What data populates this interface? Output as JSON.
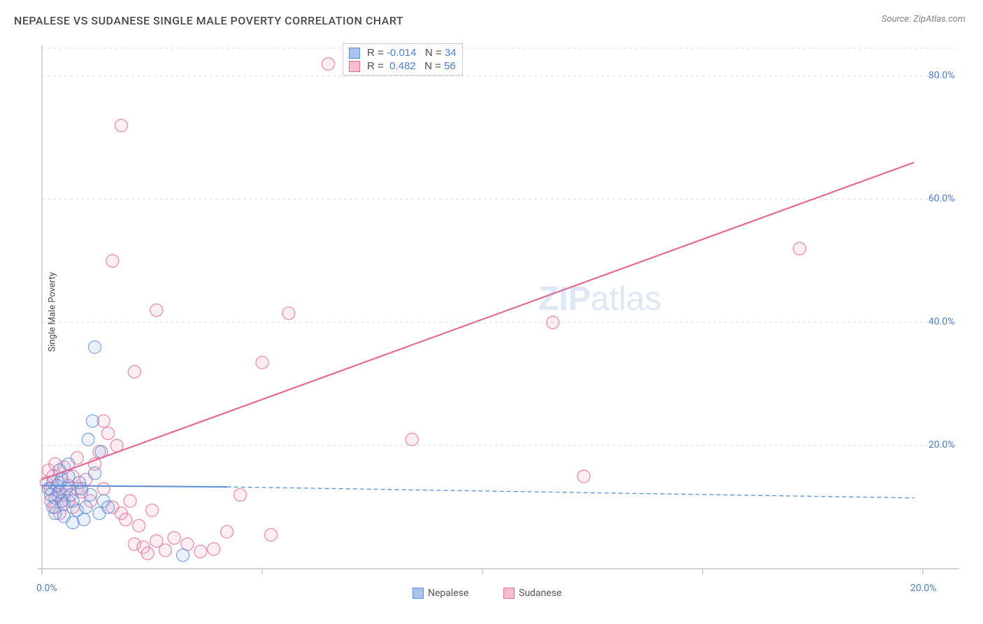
{
  "title": "NEPALESE VS SUDANESE SINGLE MALE POVERTY CORRELATION CHART",
  "source_label": "Source: ZipAtlas.com",
  "ylabel": "Single Male Poverty",
  "watermark_bold": "ZIP",
  "watermark_light": "atlas",
  "chart": {
    "type": "scatter",
    "xlim": [
      0,
      20
    ],
    "ylim": [
      0,
      85
    ],
    "x_ticks": [
      0,
      5,
      10,
      15,
      20
    ],
    "y_ticks": [
      20,
      40,
      60,
      80
    ],
    "x_tick_labels": {
      "0": "0.0%",
      "20": "20.0%"
    },
    "y_tick_labels": {
      "20": "20.0%",
      "40": "40.0%",
      "60": "60.0%",
      "80": "80.0%"
    },
    "grid_color": "#dddddd",
    "axis_color": "#bbbbbb",
    "background_color": "#ffffff",
    "marker_radius": 9,
    "marker_fill_opacity": 0.18,
    "marker_stroke_opacity": 0.7,
    "marker_stroke_width": 1.4,
    "series": {
      "nepalese": {
        "label": "Nepalese",
        "color_stroke": "#5a8dd6",
        "color_fill": "#8fb4e8",
        "R": "-0.014",
        "N": "34",
        "trend": {
          "x1": 0,
          "y1": 13.5,
          "x2": 4.2,
          "y2": 13.3,
          "extend_x2": 19.8,
          "extend_y2": 11.5,
          "solid_width": 2,
          "dash": "6 4"
        },
        "points": [
          [
            0.15,
            13
          ],
          [
            0.2,
            12
          ],
          [
            0.25,
            14
          ],
          [
            0.3,
            11.5
          ],
          [
            0.35,
            13.5
          ],
          [
            0.4,
            12.5
          ],
          [
            0.45,
            14.5
          ],
          [
            0.5,
            10.5
          ],
          [
            0.55,
            13
          ],
          [
            0.6,
            15
          ],
          [
            0.65,
            12
          ],
          [
            0.7,
            11
          ],
          [
            0.8,
            9.5
          ],
          [
            0.85,
            14
          ],
          [
            0.9,
            13
          ],
          [
            1.0,
            10
          ],
          [
            1.1,
            12
          ],
          [
            1.2,
            15.5
          ],
          [
            1.3,
            9
          ],
          [
            1.4,
            11
          ],
          [
            1.5,
            10
          ],
          [
            1.05,
            21
          ],
          [
            1.15,
            24
          ],
          [
            1.35,
            19
          ],
          [
            1.2,
            36
          ],
          [
            0.95,
            8
          ],
          [
            3.2,
            2.2
          ],
          [
            0.4,
            16
          ],
          [
            0.6,
            17
          ],
          [
            0.5,
            8.5
          ],
          [
            0.7,
            7.5
          ],
          [
            0.3,
            9
          ],
          [
            0.25,
            10
          ],
          [
            0.45,
            11
          ]
        ]
      },
      "sudanese": {
        "label": "Sudanese",
        "color_stroke": "#e56a94",
        "color_fill": "#f5a3bd",
        "R": "0.482",
        "N": "56",
        "trend": {
          "x1": 0,
          "y1": 14.5,
          "x2": 19.8,
          "y2": 66,
          "solid_width": 2.2
        },
        "points": [
          [
            0.1,
            14
          ],
          [
            0.15,
            16
          ],
          [
            0.2,
            13
          ],
          [
            0.25,
            15
          ],
          [
            0.3,
            17
          ],
          [
            0.35,
            12
          ],
          [
            0.4,
            14
          ],
          [
            0.5,
            16.5
          ],
          [
            0.6,
            13.5
          ],
          [
            0.7,
            15
          ],
          [
            0.8,
            18
          ],
          [
            0.9,
            12.5
          ],
          [
            1.0,
            14.5
          ],
          [
            1.1,
            11
          ],
          [
            1.2,
            17
          ],
          [
            1.3,
            19
          ],
          [
            1.4,
            13
          ],
          [
            1.5,
            22
          ],
          [
            1.6,
            10
          ],
          [
            1.7,
            20
          ],
          [
            1.8,
            9
          ],
          [
            1.9,
            8
          ],
          [
            2.0,
            11
          ],
          [
            2.1,
            4
          ],
          [
            2.2,
            7
          ],
          [
            2.3,
            3.5
          ],
          [
            2.5,
            9.5
          ],
          [
            2.6,
            4.5
          ],
          [
            2.8,
            3
          ],
          [
            3.0,
            5
          ],
          [
            3.3,
            4
          ],
          [
            3.9,
            3.2
          ],
          [
            1.4,
            24
          ],
          [
            2.1,
            32
          ],
          [
            5.0,
            33.5
          ],
          [
            2.6,
            42
          ],
          [
            5.6,
            41.5
          ],
          [
            1.6,
            50
          ],
          [
            1.8,
            72
          ],
          [
            6.5,
            82
          ],
          [
            8.4,
            21
          ],
          [
            11.6,
            40
          ],
          [
            12.3,
            15
          ],
          [
            17.2,
            52
          ],
          [
            4.2,
            6
          ],
          [
            4.5,
            12
          ],
          [
            5.2,
            5.5
          ],
          [
            0.2,
            11
          ],
          [
            0.3,
            10
          ],
          [
            0.4,
            9
          ],
          [
            0.5,
            12
          ],
          [
            0.6,
            11
          ],
          [
            0.7,
            10
          ],
          [
            0.8,
            13
          ],
          [
            2.4,
            2.5
          ],
          [
            3.6,
            2.8
          ]
        ]
      }
    }
  },
  "x_legend": [
    {
      "swatch_fill": "#a8c4ec",
      "swatch_border": "#5a8dd6",
      "label": "Nepalese"
    },
    {
      "swatch_fill": "#f7bdd0",
      "swatch_border": "#e56a94",
      "label": "Sudanese"
    }
  ]
}
